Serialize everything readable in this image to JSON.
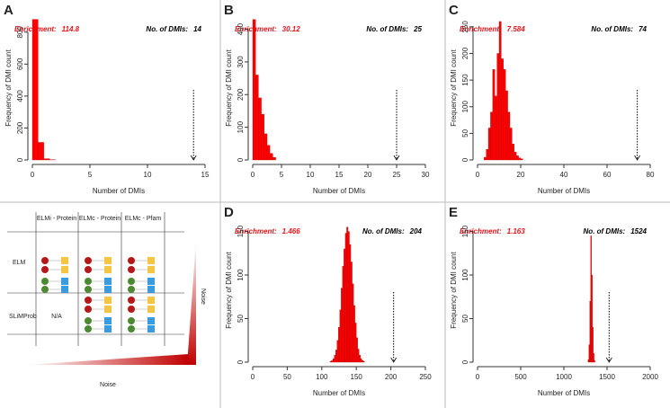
{
  "chart_data": [
    {
      "type": "histogram",
      "panel": "A",
      "enrichment_label": "Enrichment:",
      "enrichment": 114.8,
      "dmi_label": "No. of DMIs:",
      "observed": 14,
      "xlabel": "Number of DMIs",
      "ylabel": "Frequency of DMI count",
      "color": "#ff0000",
      "bins": [
        0,
        0.5,
        1,
        1.5,
        2
      ],
      "counts": [
        880,
        110,
        8,
        1
      ],
      "xlim": [
        0,
        15
      ],
      "xticks": [
        0,
        5,
        10,
        15
      ],
      "ylim": [
        0,
        900
      ],
      "yticks": [
        0,
        200,
        400,
        600,
        800
      ]
    },
    {
      "type": "histogram",
      "panel": "B",
      "enrichment_label": "Enrichment:",
      "enrichment": 30.12,
      "dmi_label": "No. of DMIs:",
      "observed": 25,
      "xlabel": "Number of DMIs",
      "ylabel": "Frequency of DMI count",
      "color": "#ff0000",
      "bins": [
        0,
        0.5,
        1,
        1.5,
        2,
        2.5,
        3,
        3.5,
        4
      ],
      "counts": [
        430,
        260,
        190,
        140,
        80,
        45,
        20,
        8
      ],
      "xlim": [
        0,
        30
      ],
      "xticks": [
        0,
        5,
        10,
        15,
        20,
        25,
        30
      ],
      "ylim": [
        0,
        440
      ],
      "yticks": [
        0,
        100,
        200,
        300,
        400
      ]
    },
    {
      "type": "histogram",
      "panel": "C",
      "enrichment_label": "Enrichment:",
      "enrichment": 7.584,
      "dmi_label": "No. of DMIs:",
      "observed": 74,
      "xlabel": "Number of DMIs",
      "ylabel": "Frequency of DMI count",
      "color": "#ff0000",
      "bins": [
        3,
        4,
        5,
        6,
        7,
        8,
        9,
        10,
        11,
        12,
        13,
        14,
        15,
        16,
        17,
        18,
        19,
        20,
        21
      ],
      "counts": [
        5,
        20,
        60,
        90,
        170,
        120,
        200,
        260,
        190,
        170,
        130,
        90,
        60,
        30,
        15,
        8,
        4,
        2
      ],
      "xlim": [
        0,
        80
      ],
      "xticks": [
        0,
        20,
        40,
        60,
        80
      ],
      "ylim": [
        0,
        270
      ],
      "yticks": [
        0,
        50,
        100,
        150,
        200,
        250
      ]
    },
    {
      "type": "histogram",
      "panel": "D",
      "enrichment_label": "Enrichment:",
      "enrichment": 1.466,
      "dmi_label": "No. of DMIs:",
      "observed": 204,
      "xlabel": "Number of DMIs",
      "ylabel": "Frequency of DMI count",
      "color": "#ff0000",
      "bins": [
        112,
        114,
        116,
        118,
        120,
        122,
        124,
        126,
        128,
        130,
        132,
        134,
        136,
        138,
        140,
        142,
        144,
        146,
        148,
        150,
        152,
        154,
        156,
        158,
        160,
        162
      ],
      "counts": [
        1,
        2,
        4,
        8,
        14,
        25,
        40,
        60,
        85,
        110,
        130,
        148,
        155,
        150,
        135,
        115,
        90,
        65,
        45,
        28,
        15,
        8,
        4,
        2,
        1
      ],
      "xlim": [
        0,
        250
      ],
      "xticks": [
        0,
        50,
        100,
        150,
        200,
        250
      ],
      "ylim": [
        0,
        165
      ],
      "yticks": [
        0,
        50,
        100,
        150
      ]
    },
    {
      "type": "histogram",
      "panel": "E",
      "enrichment_label": "Enrichment:",
      "enrichment": 1.163,
      "dmi_label": "No. of DMIs:",
      "observed": 1524,
      "xlabel": "Number of DMIs",
      "ylabel": "Frequency of DMI count",
      "color": "#ff0000",
      "bins": [
        1280,
        1290,
        1300,
        1310,
        1320,
        1330,
        1340,
        1350,
        1360
      ],
      "counts": [
        3,
        20,
        70,
        145,
        100,
        40,
        10,
        2
      ],
      "xlim": [
        0,
        2000
      ],
      "xticks": [
        0,
        500,
        1000,
        1500,
        2000
      ],
      "ylim": [
        0,
        165
      ],
      "yticks": [
        0,
        50,
        100,
        150
      ]
    }
  ],
  "diagram": {
    "columns": [
      "ELMi - Protein",
      "ELMc - Protein",
      "ELMc - Pfam"
    ],
    "rows": [
      "ELM",
      "SLiMProb"
    ],
    "na": "N/A",
    "noise_vertical": "Noise",
    "noise_horizontal": "Noise"
  }
}
